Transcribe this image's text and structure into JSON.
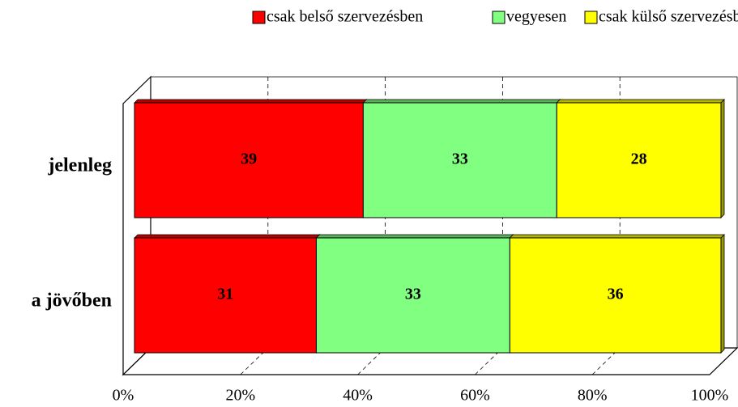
{
  "chart_data": {
    "type": "stacked_bar_3d",
    "categories": [
      "jelenleg",
      "a jövőben"
    ],
    "series": [
      {
        "name": "csak belső szervezésben",
        "color": "#ff0000",
        "values": [
          39,
          31
        ]
      },
      {
        "name": "vegyesen",
        "color": "#80ff80",
        "values": [
          33,
          33
        ]
      },
      {
        "name": "csak külső szervezésben",
        "color": "#ffff00",
        "values": [
          28,
          36
        ]
      }
    ],
    "xlim": [
      0,
      100
    ],
    "xticks": [
      {
        "value": 0,
        "label": "0%"
      },
      {
        "value": 20,
        "label": "20%"
      },
      {
        "value": 40,
        "label": "40%"
      },
      {
        "value": 60,
        "label": "60%"
      },
      {
        "value": 80,
        "label": "80%"
      },
      {
        "value": 100,
        "label": "100%"
      }
    ],
    "grid": true,
    "legend": "top"
  }
}
